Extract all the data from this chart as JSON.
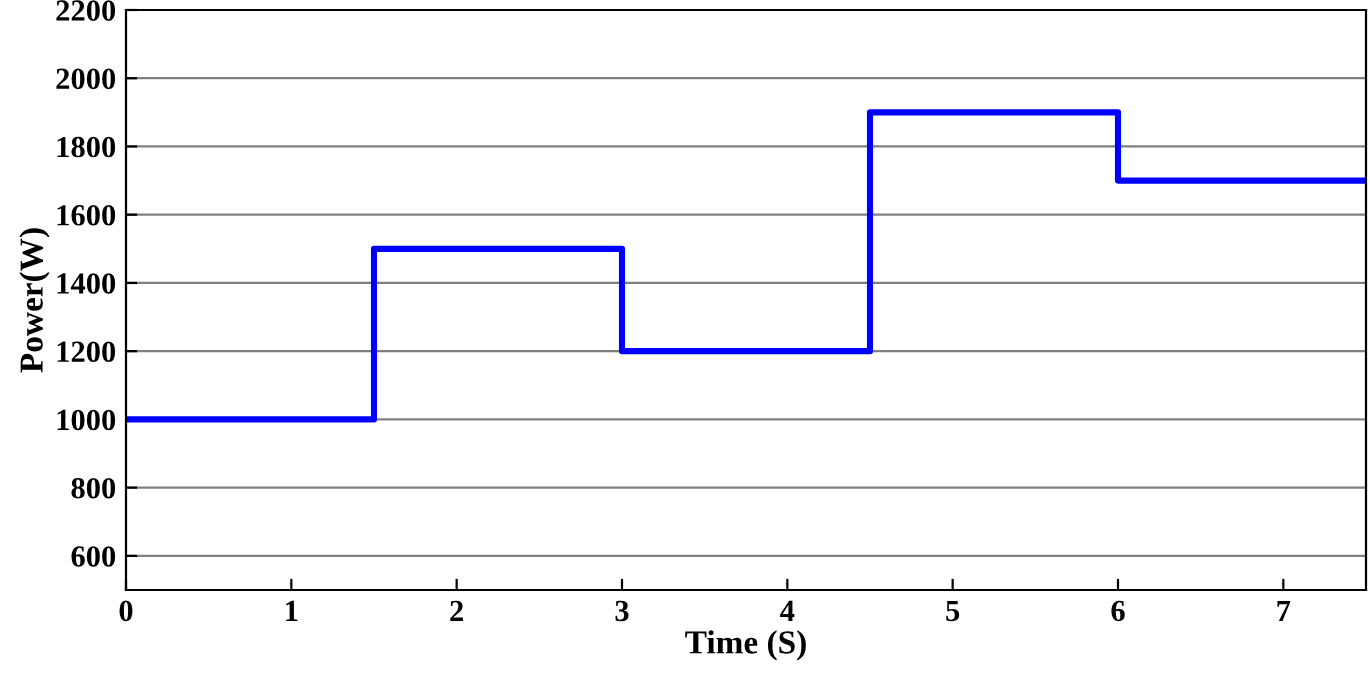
{
  "chart_data": {
    "type": "step",
    "xlabel": "Time (S)",
    "ylabel": "Power(W)",
    "x": [
      0,
      1.5,
      3,
      4.5,
      6,
      7.5
    ],
    "series": [
      {
        "color": "#0000ff",
        "values": [
          1000,
          1500,
          1200,
          1900,
          1700,
          1700
        ]
      }
    ],
    "xlim": [
      0,
      7.5
    ],
    "xticks": [
      0,
      1,
      2,
      3,
      4,
      5,
      6,
      7
    ],
    "ylim": [
      500,
      2200
    ],
    "yticks": [
      600,
      800,
      1000,
      1200,
      1400,
      1600,
      1800,
      2000,
      2200
    ],
    "grid": "y",
    "line_style": "solid",
    "marker": "none",
    "legend": false
  }
}
